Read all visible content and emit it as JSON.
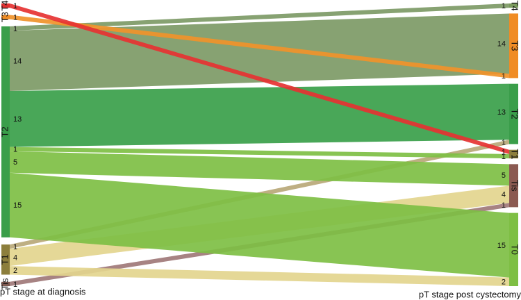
{
  "chart_data": {
    "type": "sankey",
    "left_axis_label": "pT stage at diagnosis",
    "right_axis_label": "pT stage post cystectomy",
    "left_nodes": [
      {
        "name": "T4",
        "color": "#e03030"
      },
      {
        "name": "T3",
        "color": "#f08c24"
      },
      {
        "name": "T2",
        "color": "#3a9e4a"
      },
      {
        "name": "T1",
        "color": "#8c7e3c"
      },
      {
        "name": "Tis",
        "color": "#7f5a50"
      }
    ],
    "right_nodes": [
      {
        "name": "T4",
        "color": "#7a9a5e"
      },
      {
        "name": "T3",
        "color": "#f08c24"
      },
      {
        "name": "T2",
        "color": "#3a9e4a"
      },
      {
        "name": "T1",
        "color": "#8c7e3c"
      },
      {
        "name": "Tis",
        "color": "#8b5a52"
      },
      {
        "name": "T0",
        "color": "#7ebf44"
      }
    ],
    "links": [
      {
        "source": "T2",
        "target": "T4",
        "value": 1,
        "color": "#7d9a66"
      },
      {
        "source": "T2",
        "target": "T3",
        "value": 14,
        "color": "#7d9a66"
      },
      {
        "source": "T3",
        "target": "T3",
        "value": 1,
        "color": "#f0922a"
      },
      {
        "source": "T2",
        "target": "T2",
        "value": 13,
        "color": "#3aa04a"
      },
      {
        "source": "T1",
        "target": "T2",
        "value": 1,
        "color": "#b8a878"
      },
      {
        "source": "T4",
        "target": "T1",
        "value": 1,
        "color": "#e63232"
      },
      {
        "source": "T2",
        "target": "T1",
        "value": 1,
        "color": "#7ebf44"
      },
      {
        "source": "T2",
        "target": "Tis",
        "value": 5,
        "color": "#7ebf44"
      },
      {
        "source": "T1",
        "target": "Tis",
        "value": 4,
        "color": "#e3d58e"
      },
      {
        "source": "Tis",
        "target": "Tis",
        "value": 1,
        "color": "#a07878"
      },
      {
        "source": "T2",
        "target": "T0",
        "value": 15,
        "color": "#7ebf44"
      },
      {
        "source": "T1",
        "target": "T0",
        "value": 2,
        "color": "#e3d58e"
      }
    ]
  }
}
